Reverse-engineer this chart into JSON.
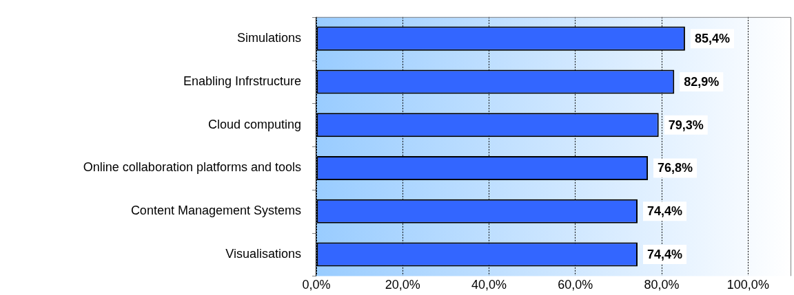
{
  "chart_data": {
    "type": "bar",
    "orientation": "horizontal",
    "categories": [
      "Simulations",
      "Enabling Infrstructure",
      "Cloud computing",
      "Online collaboration platforms and tools",
      "Content Management Systems",
      "Visualisations"
    ],
    "values": [
      85.4,
      82.9,
      79.3,
      76.8,
      74.4,
      74.4
    ],
    "value_labels": [
      "85,4%",
      "82,9%",
      "79,3%",
      "76,8%",
      "74,4%",
      "74,4%"
    ],
    "color": "#3366ff",
    "xlim": [
      0,
      110
    ],
    "xticks": [
      {
        "value": 0,
        "label": "0,0%"
      },
      {
        "value": 20,
        "label": "20,0%"
      },
      {
        "value": 40,
        "label": "40,0%"
      },
      {
        "value": 60,
        "label": "60,0%"
      },
      {
        "value": 80,
        "label": "80,0%"
      },
      {
        "value": 100,
        "label": "100,0%"
      }
    ],
    "grid": "x",
    "legend": false
  }
}
